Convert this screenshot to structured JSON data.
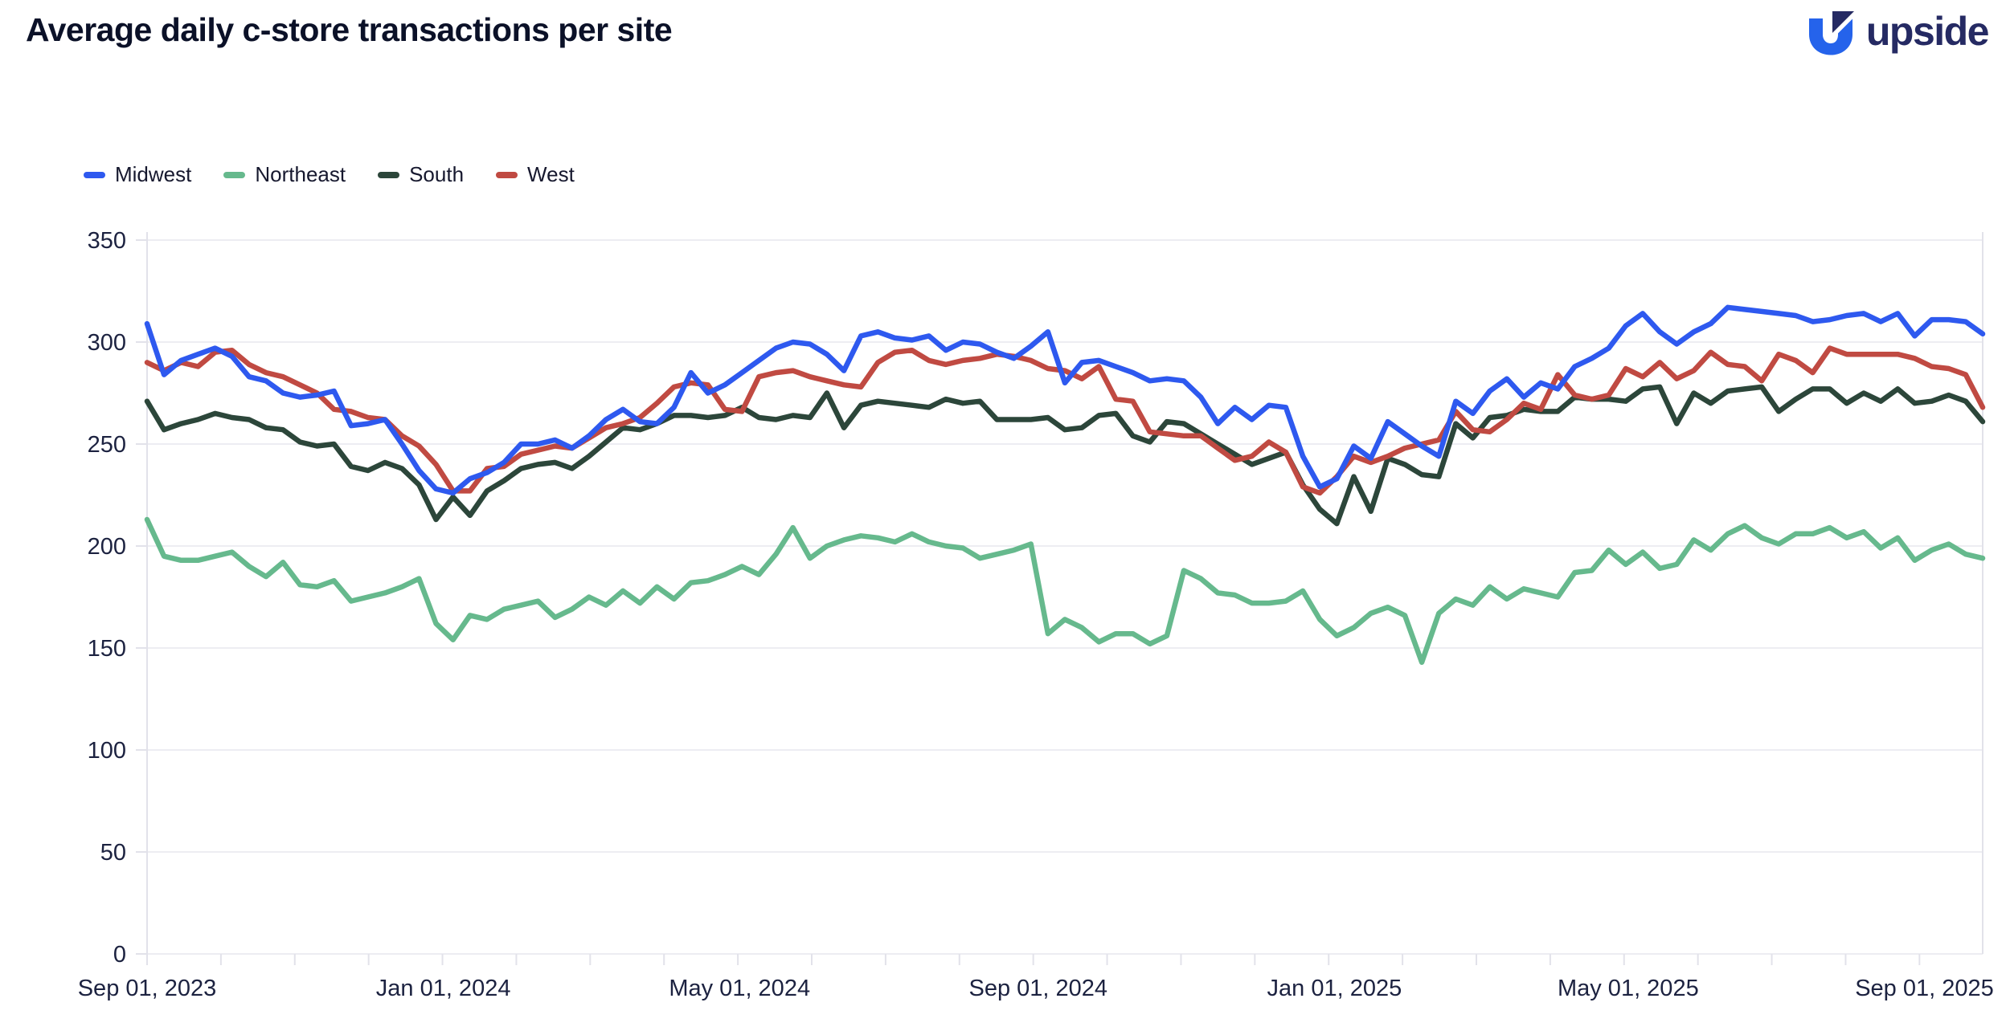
{
  "header": {
    "title": "Average daily c-store transactions per site"
  },
  "brand": {
    "name": "upside",
    "navy": "#252a63",
    "blue": "#2563eb"
  },
  "legend": [
    {
      "label": "Midwest",
      "color": "#2e59ef"
    },
    {
      "label": "Northeast",
      "color": "#66b98d"
    },
    {
      "label": "South",
      "color": "#2c463a"
    },
    {
      "label": "West",
      "color": "#c04a42"
    }
  ],
  "chart_data": {
    "type": "line",
    "title": "Average daily c-store transactions per site",
    "xlabel": "",
    "ylabel": "",
    "ylim": [
      0,
      350
    ],
    "yticks": [
      0,
      50,
      100,
      150,
      200,
      250,
      300,
      350
    ],
    "x_unit": "weekly data points starting Sep 01, 2023",
    "x_max_week": 108,
    "xticks": [
      {
        "label": "Sep 01, 2023",
        "week": 0
      },
      {
        "label": "Jan 01, 2024",
        "week": 17.43
      },
      {
        "label": "May 01, 2024",
        "week": 34.86
      },
      {
        "label": "Sep 01, 2024",
        "week": 52.43
      },
      {
        "label": "Jan 01, 2025",
        "week": 69.86
      },
      {
        "label": "May 01, 2025",
        "week": 87.14
      },
      {
        "label": "Sep 01, 2025",
        "week": 104.57
      }
    ],
    "months_per_minor_tick": 1,
    "minor_ticks_total": 25,
    "grid": "horizontal",
    "legend_position": "top-left",
    "series": [
      {
        "name": "Northeast",
        "color": "#66b98d",
        "values": [
          213,
          195,
          193,
          193,
          195,
          197,
          190,
          185,
          192,
          181,
          180,
          183,
          173,
          175,
          177,
          180,
          184,
          162,
          154,
          166,
          164,
          169,
          171,
          173,
          165,
          169,
          175,
          171,
          178,
          172,
          180,
          174,
          182,
          183,
          186,
          190,
          186,
          196,
          209,
          194,
          200,
          203,
          205,
          204,
          202,
          206,
          202,
          200,
          199,
          194,
          196,
          198,
          201,
          157,
          164,
          160,
          153,
          157,
          157,
          152,
          156,
          188,
          184,
          177,
          176,
          172,
          172,
          173,
          178,
          164,
          156,
          160,
          167,
          170,
          166,
          143,
          167,
          174,
          171,
          180,
          174,
          179,
          177,
          175,
          187,
          188,
          198,
          191,
          197,
          189,
          191,
          203,
          198,
          206,
          210,
          204,
          201,
          206,
          206,
          209,
          204,
          207,
          199,
          204,
          193,
          198,
          201,
          196,
          194
        ]
      },
      {
        "name": "South",
        "color": "#2c463a",
        "values": [
          271,
          257,
          260,
          262,
          265,
          263,
          262,
          258,
          257,
          251,
          249,
          250,
          239,
          237,
          241,
          238,
          230,
          213,
          224,
          215,
          227,
          232,
          238,
          240,
          241,
          238,
          244,
          251,
          258,
          257,
          260,
          264,
          264,
          263,
          264,
          268,
          263,
          262,
          264,
          263,
          275,
          258,
          269,
          271,
          270,
          269,
          268,
          272,
          270,
          271,
          262,
          262,
          262,
          263,
          257,
          258,
          264,
          265,
          254,
          251,
          261,
          260,
          255,
          250,
          245,
          240,
          243,
          246,
          230,
          218,
          211,
          234,
          217,
          243,
          240,
          235,
          234,
          260,
          253,
          263,
          264,
          267,
          266,
          266,
          273,
          272,
          272,
          271,
          277,
          278,
          260,
          275,
          270,
          276,
          277,
          278,
          266,
          272,
          277,
          277,
          270,
          275,
          271,
          277,
          270,
          271,
          274,
          271,
          261
        ]
      },
      {
        "name": "West",
        "color": "#c04a42",
        "values": [
          290,
          286,
          290,
          288,
          295,
          296,
          289,
          285,
          283,
          279,
          275,
          267,
          266,
          263,
          262,
          254,
          249,
          240,
          227,
          227,
          238,
          239,
          245,
          247,
          249,
          248,
          253,
          258,
          260,
          263,
          270,
          278,
          280,
          279,
          267,
          266,
          283,
          285,
          286,
          283,
          281,
          279,
          278,
          290,
          295,
          296,
          291,
          289,
          291,
          292,
          294,
          293,
          291,
          287,
          286,
          282,
          288,
          272,
          271,
          256,
          255,
          254,
          254,
          248,
          242,
          244,
          251,
          246,
          229,
          226,
          234,
          244,
          241,
          244,
          248,
          250,
          252,
          266,
          257,
          256,
          262,
          270,
          267,
          284,
          274,
          272,
          274,
          287,
          283,
          290,
          282,
          286,
          295,
          289,
          288,
          281,
          294,
          291,
          285,
          297,
          294,
          294,
          294,
          294,
          292,
          288,
          287,
          284,
          268
        ]
      },
      {
        "name": "Midwest",
        "color": "#2e59ef",
        "values": [
          309,
          284,
          291,
          294,
          297,
          293,
          283,
          281,
          275,
          273,
          274,
          276,
          259,
          260,
          262,
          250,
          237,
          228,
          226,
          233,
          236,
          241,
          250,
          250,
          252,
          248,
          254,
          262,
          267,
          261,
          260,
          268,
          285,
          275,
          279,
          285,
          291,
          297,
          300,
          299,
          294,
          286,
          303,
          305,
          302,
          301,
          303,
          296,
          300,
          299,
          295,
          292,
          298,
          305,
          280,
          290,
          291,
          288,
          285,
          281,
          282,
          281,
          273,
          260,
          268,
          262,
          269,
          268,
          244,
          229,
          233,
          249,
          243,
          261,
          255,
          249,
          244,
          271,
          265,
          276,
          282,
          273,
          280,
          277,
          288,
          292,
          297,
          308,
          314,
          305,
          299,
          305,
          309,
          317,
          316,
          315,
          314,
          313,
          310,
          311,
          313,
          314,
          310,
          314,
          303,
          311,
          311,
          310,
          304
        ]
      }
    ],
    "colors": {
      "grid": "#ededf2",
      "axis": "#e2e2ea",
      "tick_label": "#1c2240"
    }
  }
}
